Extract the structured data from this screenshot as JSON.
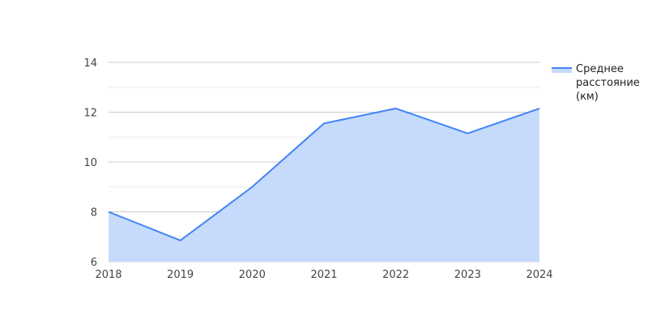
{
  "chart_data": {
    "type": "area",
    "x": [
      "2018",
      "2019",
      "2020",
      "2021",
      "2022",
      "2023",
      "2024"
    ],
    "series": [
      {
        "name": "Среднее расстояние (км)",
        "name_lines": [
          "Среднее",
          "расстояние",
          "(км)"
        ],
        "values": [
          8.0,
          6.85,
          9.0,
          11.55,
          12.15,
          11.15,
          12.15
        ],
        "line_color": "#4285f4",
        "fill_color": "#c6dafc"
      }
    ],
    "ylim": [
      6,
      14
    ],
    "yticks": [
      "6",
      "8",
      "10",
      "12",
      "14"
    ],
    "grid": true,
    "legend_position": "right",
    "title": "",
    "xlabel": "",
    "ylabel": ""
  }
}
